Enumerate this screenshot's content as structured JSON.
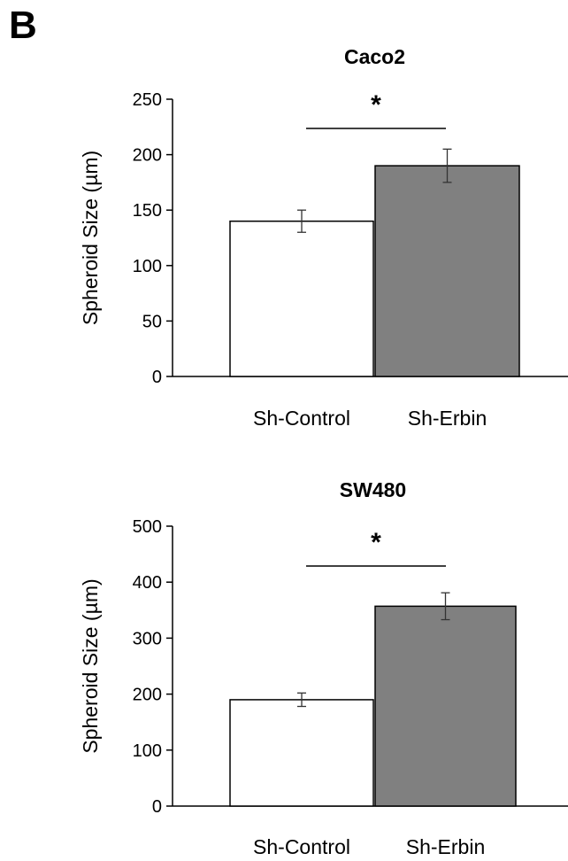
{
  "panel_label": "B",
  "chart_data": [
    {
      "type": "bar",
      "title": "Caco2",
      "ylabel": "Spheroid Size (µm)",
      "xlabel": "",
      "categories": [
        "Sh-Control",
        "Sh-Erbin"
      ],
      "values": [
        140,
        190
      ],
      "errors": [
        10,
        15
      ],
      "ylim": [
        0,
        250
      ],
      "yticks": [
        0,
        50,
        100,
        150,
        200,
        250
      ],
      "bar_colors": [
        "#ffffff",
        "#808080"
      ],
      "significance": "*"
    },
    {
      "type": "bar",
      "title": "SW480",
      "ylabel": "Spheroid Size (µm)",
      "xlabel": "",
      "categories": [
        "Sh-Control",
        "Sh-Erbin"
      ],
      "values": [
        190,
        357
      ],
      "errors": [
        12,
        24
      ],
      "ylim": [
        0,
        500
      ],
      "yticks": [
        0,
        100,
        200,
        300,
        400,
        500
      ],
      "bar_colors": [
        "#ffffff",
        "#808080"
      ],
      "significance": "*"
    }
  ]
}
